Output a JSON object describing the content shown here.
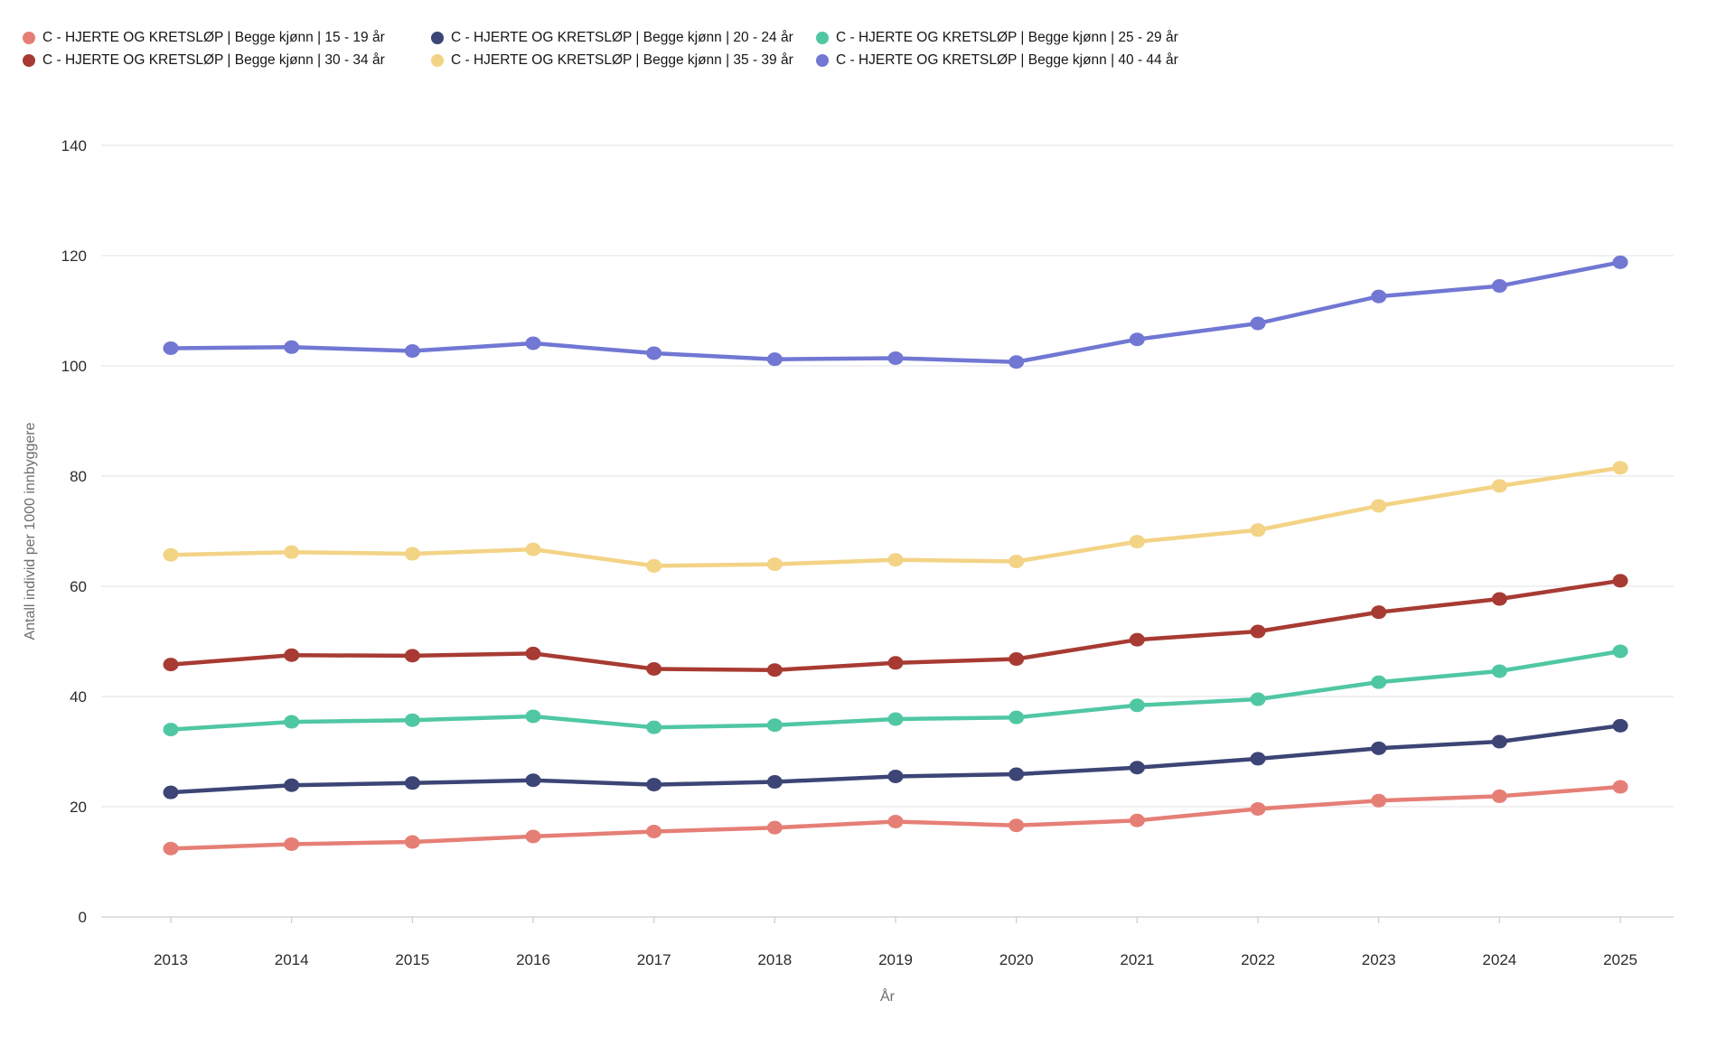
{
  "legend": {
    "items": [
      {
        "label": "C - HJERTE OG KRETSLØP | Begge kjønn | 15 - 19 år",
        "color": "#e57f76"
      },
      {
        "label": "C - HJERTE OG KRETSLØP | Begge kjønn | 20 - 24 år",
        "color": "#3c4575"
      },
      {
        "label": "C - HJERTE OG KRETSLØP | Begge kjønn | 25 - 29 år",
        "color": "#50c7a3"
      },
      {
        "label": "C - HJERTE OG KRETSLØP | Begge kjønn | 30 - 34 år",
        "color": "#a73b33"
      },
      {
        "label": "C - HJERTE OG KRETSLØP | Begge kjønn | 35 - 39 år",
        "color": "#f3d385"
      },
      {
        "label": "C - HJERTE OG KRETSLØP | Begge kjønn | 40 - 44 år",
        "color": "#7177d3"
      }
    ]
  },
  "axes": {
    "y_title": "Antall individ per 1000 innbyggere",
    "x_title": "År",
    "y_ticks": [
      0,
      20,
      40,
      60,
      80,
      100,
      120,
      140
    ],
    "x_ticks": [
      2013,
      2014,
      2015,
      2016,
      2017,
      2018,
      2019,
      2020,
      2021,
      2022,
      2023,
      2024,
      2025
    ]
  },
  "chart_data": {
    "type": "line",
    "x": [
      2013,
      2014,
      2015,
      2016,
      2017,
      2018,
      2019,
      2020,
      2021,
      2022,
      2023,
      2024,
      2025
    ],
    "xlabel": "År",
    "ylabel": "Antall individ per 1000 innbyggere",
    "ylim": [
      0,
      140
    ],
    "grid": "horizontal",
    "legend_position": "top-left",
    "series": [
      {
        "name": "C - HJERTE OG KRETSLØP | Begge kjønn | 15 - 19 år",
        "color": "#e57f76",
        "values": [
          12.4,
          13.2,
          13.6,
          14.6,
          15.5,
          16.2,
          17.3,
          16.6,
          17.5,
          19.6,
          21.1,
          21.9,
          23.6
        ]
      },
      {
        "name": "C - HJERTE OG KRETSLØP | Begge kjønn | 20 - 24 år",
        "color": "#3c4575",
        "values": [
          22.6,
          23.9,
          24.3,
          24.8,
          24.0,
          24.5,
          25.5,
          25.9,
          27.1,
          28.7,
          30.6,
          31.8,
          34.7
        ]
      },
      {
        "name": "C - HJERTE OG KRETSLØP | Begge kjønn | 25 - 29 år",
        "color": "#50c7a3",
        "values": [
          34.0,
          35.4,
          35.7,
          36.4,
          34.4,
          34.8,
          35.9,
          36.2,
          38.4,
          39.5,
          42.6,
          44.6,
          48.2
        ]
      },
      {
        "name": "C - HJERTE OG KRETSLØP | Begge kjønn | 30 - 34 år",
        "color": "#a73b33",
        "values": [
          45.8,
          47.5,
          47.4,
          47.8,
          45.0,
          44.8,
          46.1,
          46.8,
          50.3,
          51.8,
          55.3,
          57.7,
          61.0
        ]
      },
      {
        "name": "C - HJERTE OG KRETSLØP | Begge kjønn | 35 - 39 år",
        "color": "#f3d385",
        "values": [
          65.7,
          66.2,
          65.9,
          66.7,
          63.7,
          64.0,
          64.8,
          64.5,
          68.1,
          70.2,
          74.6,
          78.2,
          81.5
        ]
      },
      {
        "name": "C - HJERTE OG KRETSLØP | Begge kjønn | 40 - 44 år",
        "color": "#7177d3",
        "values": [
          103.2,
          103.4,
          102.7,
          104.1,
          102.3,
          101.2,
          101.4,
          100.7,
          104.8,
          107.7,
          112.6,
          114.5,
          118.8
        ]
      }
    ]
  },
  "style": {
    "gridline_color": "#e7e7e7",
    "axis_line_color": "#d6d6d6",
    "tick_color": "#cfcfcf"
  }
}
